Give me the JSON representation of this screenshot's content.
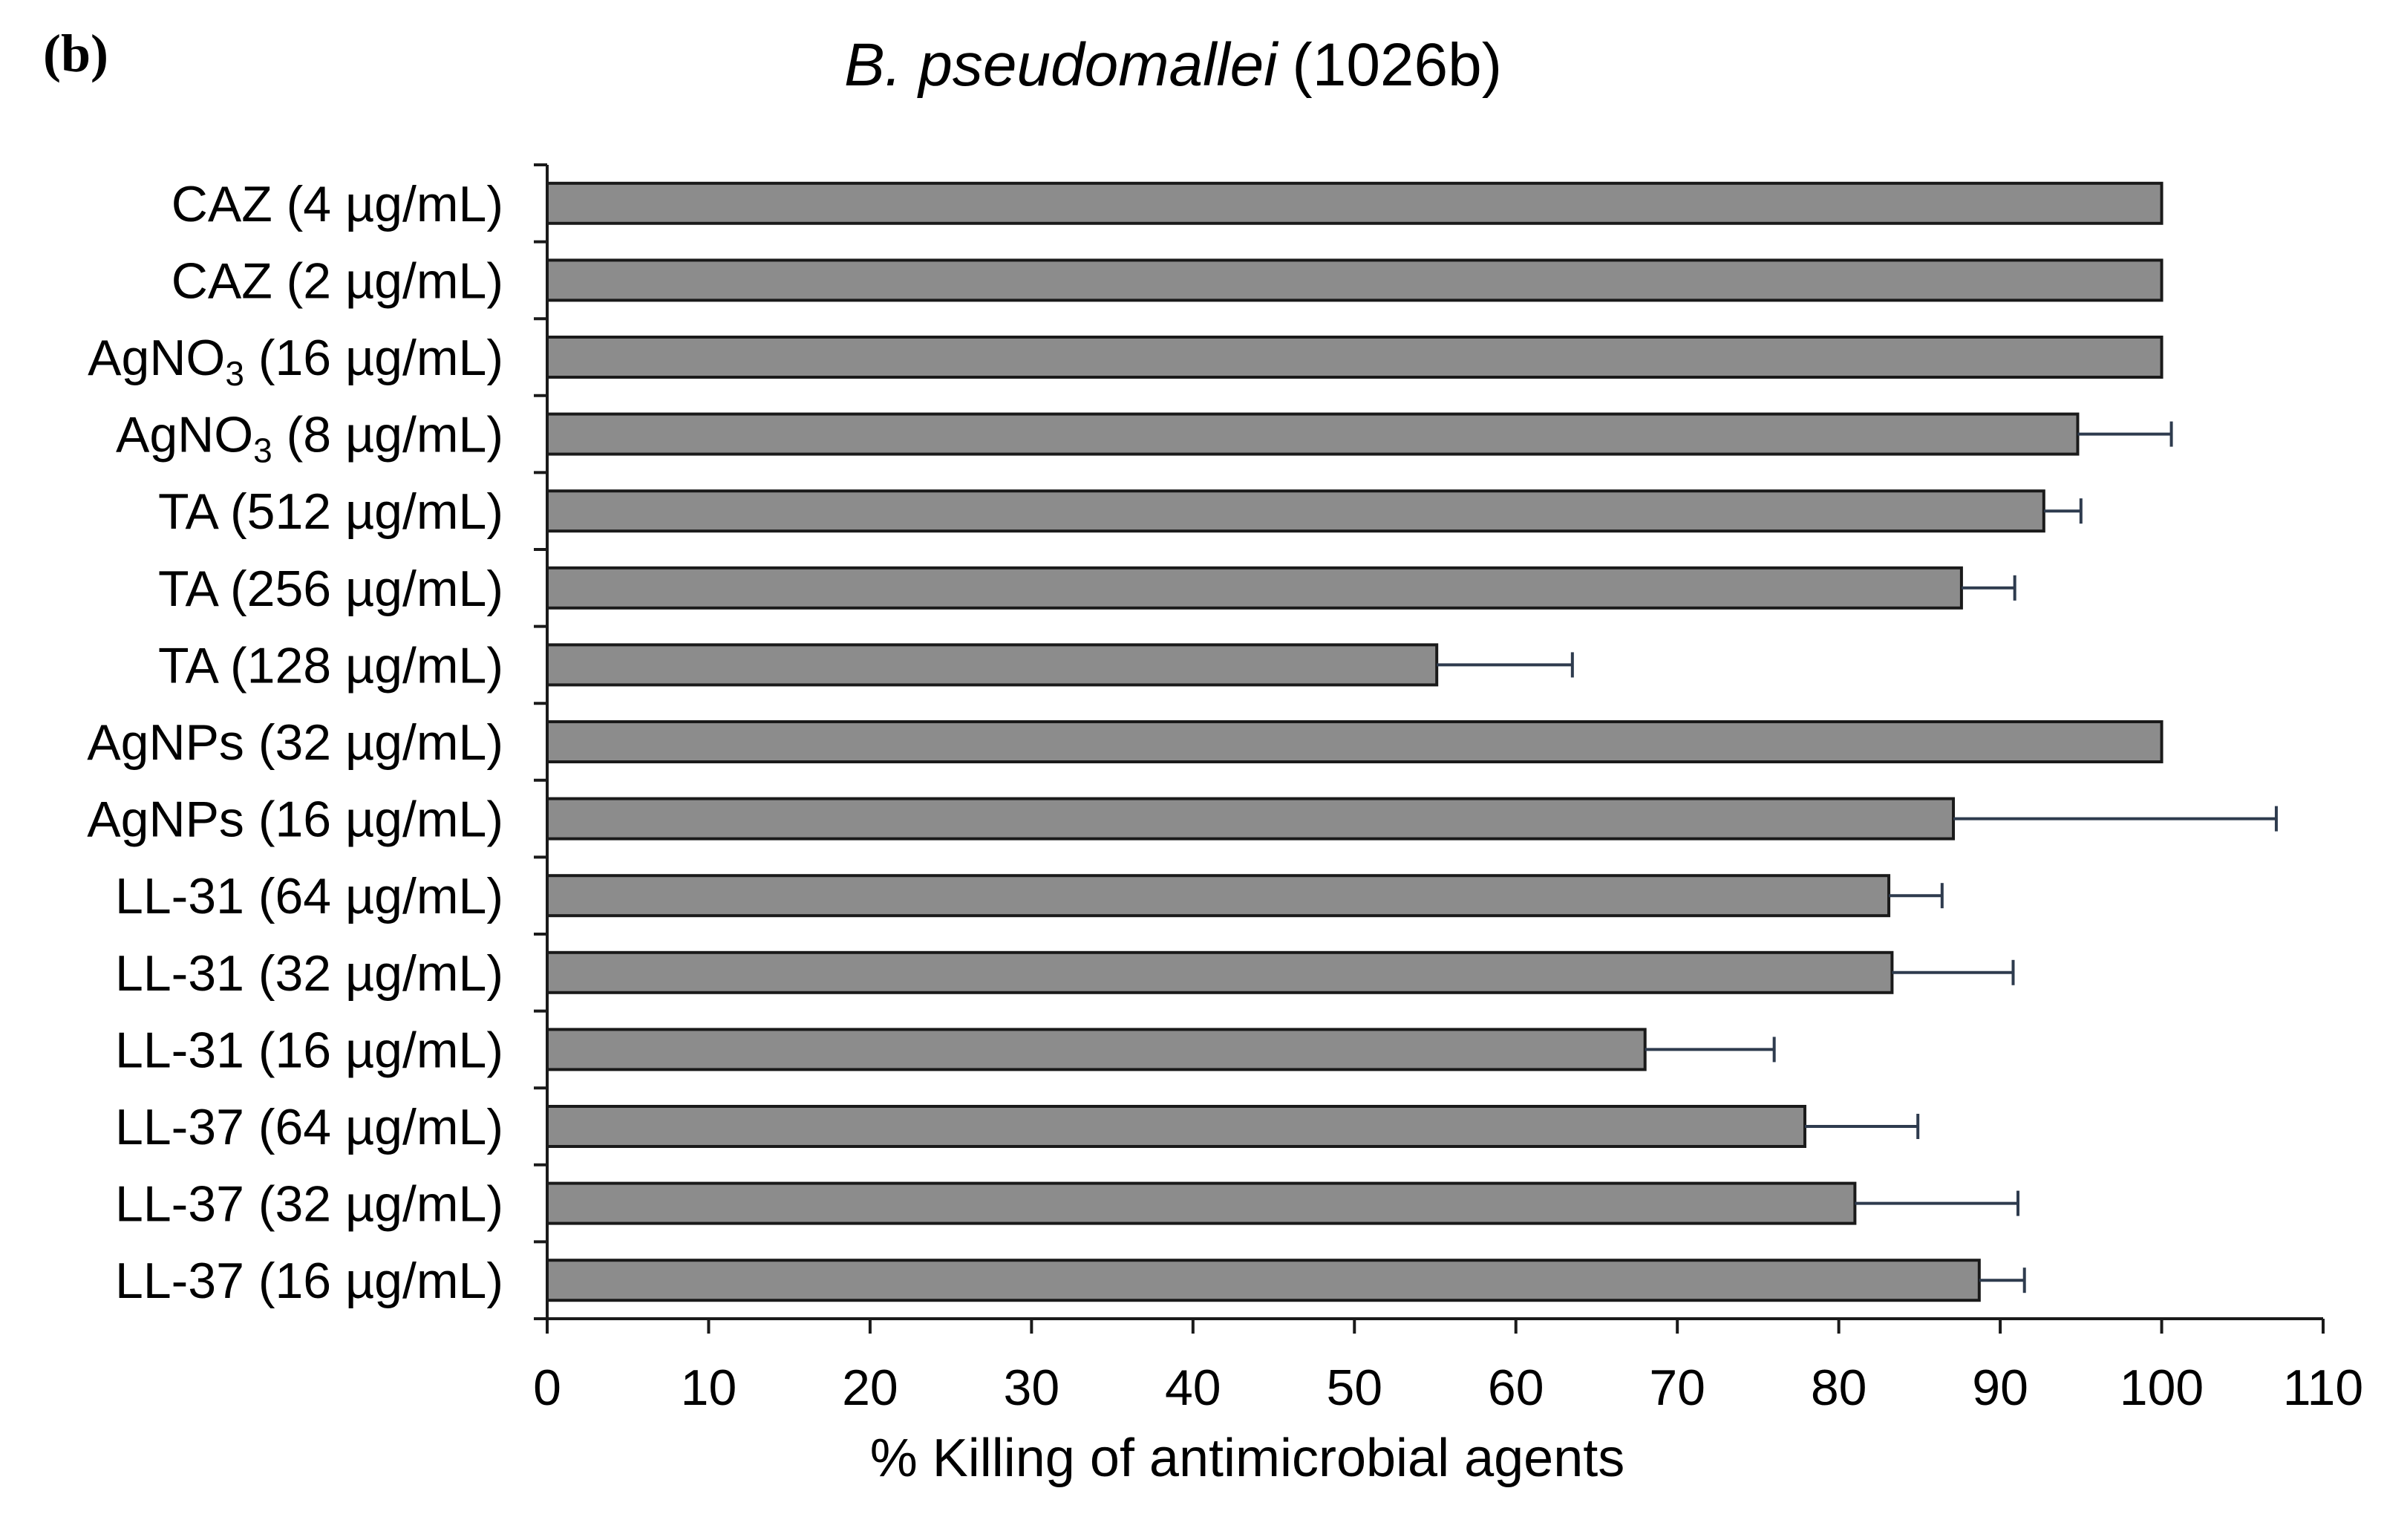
{
  "panel_label": {
    "open": "(",
    "letter": "b",
    "close": ")"
  },
  "chart_data": {
    "type": "bar",
    "orientation": "horizontal",
    "title": {
      "italic": "B. pseudomallei",
      "rest": "(1026b)"
    },
    "xlabel": "% Killing of antimicrobial agents",
    "ylabel": "",
    "xlim": [
      0,
      110
    ],
    "xticks": [
      0,
      10,
      20,
      30,
      40,
      50,
      60,
      70,
      80,
      90,
      100,
      110
    ],
    "grid": false,
    "legend": "none",
    "categories": [
      {
        "label": "CAZ (4 µg/mL)",
        "value": 100,
        "error": 0
      },
      {
        "label": "CAZ (2 µg/mL)",
        "value": 100,
        "error": 0
      },
      {
        "label": "AgNO3 (16 µg/mL)",
        "value": 100,
        "error": 0,
        "main": "AgNO",
        "sub": "3",
        "suffix": " (16 µg/mL)"
      },
      {
        "label": "AgNO3 (8 µg/mL)",
        "value": 94.8,
        "error": 5.8,
        "main": "AgNO",
        "sub": "3",
        "suffix": " (8 µg/mL)"
      },
      {
        "label": "TA (512 µg/mL)",
        "value": 92.7,
        "error": 2.3
      },
      {
        "label": "TA (256 µg/mL)",
        "value": 87.6,
        "error": 3.3
      },
      {
        "label": "TA (128 µg/mL)",
        "value": 55.1,
        "error": 8.4
      },
      {
        "label": "AgNPs (32 µg/mL)",
        "value": 100,
        "error": 0
      },
      {
        "label": "AgNPs (16 µg/mL)",
        "value": 87.1,
        "error": 20
      },
      {
        "label": "LL-31 (64 µg/mL)",
        "value": 83.1,
        "error": 3.3
      },
      {
        "label": "LL-31 (32 µg/mL)",
        "value": 83.3,
        "error": 7.5
      },
      {
        "label": "LL-31 (16 µg/mL)",
        "value": 68.0,
        "error": 8.0
      },
      {
        "label": "LL-37 (64 µg/mL)",
        "value": 77.9,
        "error": 7.0
      },
      {
        "label": "LL-37 (32 µg/mL)",
        "value": 81.0,
        "error": 10.1
      },
      {
        "label": "LL-37 (16 µg/mL)",
        "value": 88.7,
        "error": 2.8
      }
    ],
    "colors": {
      "bar_fill": "#8c8c8c",
      "bar_stroke": "#1a1a1a",
      "error_bar": "#2e3b4e",
      "axis": "#1a1a1a",
      "text": "#000000"
    }
  }
}
